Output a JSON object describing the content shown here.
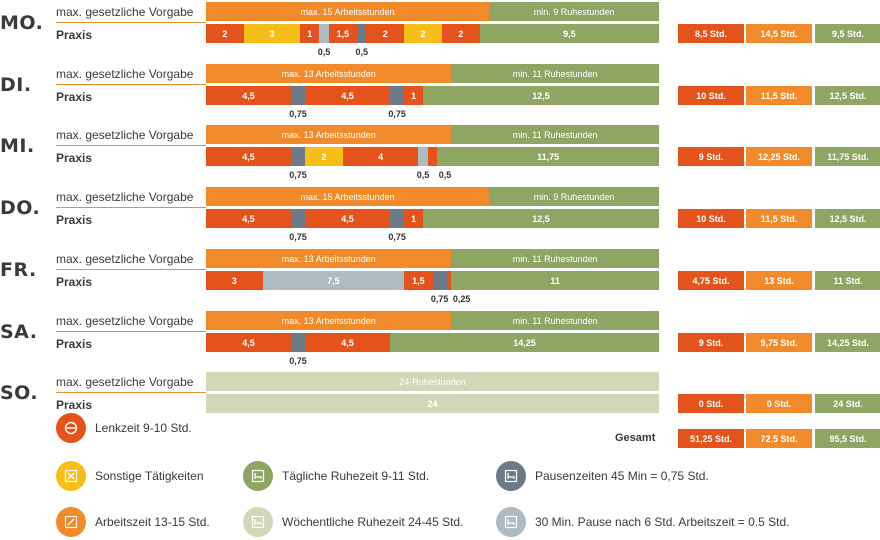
{
  "colors": {
    "lenkzeit": "#e4531b",
    "arbeitszeit": "#f08a2b",
    "sonstige": "#f7bd19",
    "ruhe_taeglich": "#8ea564",
    "ruhe_woechentlich": "#d3d7b8",
    "pause45": "#6b7a86",
    "pause30": "#aebbc2"
  },
  "chart_data": {
    "type": "bar",
    "orientation": "horizontal-stacked",
    "total_hours": 24,
    "row_labels": {
      "vorgabe": "max. gesetzliche Vorgabe",
      "praxis": "Praxis"
    },
    "days": [
      {
        "day": "MO.",
        "vorgabe": [
          {
            "label": "max. 15 Arbeitsstunden",
            "value": 15,
            "kind": "arbeitszeit"
          },
          {
            "label": "min. 9 Ruhestunden",
            "value": 9,
            "kind": "ruhe_taeglich"
          }
        ],
        "praxis": [
          {
            "label": "2",
            "value": 2,
            "kind": "lenkzeit"
          },
          {
            "label": "3",
            "value": 3,
            "kind": "sonstige"
          },
          {
            "label": "1",
            "value": 1,
            "kind": "lenkzeit"
          },
          {
            "label": "",
            "value": 0.5,
            "kind": "pause30"
          },
          {
            "label": "1,5",
            "value": 1.5,
            "kind": "lenkzeit"
          },
          {
            "label": "",
            "value": 0.5,
            "kind": "pause45"
          },
          {
            "label": "2",
            "value": 2,
            "kind": "lenkzeit"
          },
          {
            "label": "2",
            "value": 2,
            "kind": "sonstige"
          },
          {
            "label": "2",
            "value": 2,
            "kind": "lenkzeit"
          },
          {
            "label": "9,5",
            "value": 9.5,
            "kind": "ruhe_taeglich"
          }
        ],
        "below": [
          "0,5",
          "0,5"
        ],
        "summary": [
          "8,5 Std.",
          "14,5 Std.",
          "9,5 Std."
        ]
      },
      {
        "day": "DI.",
        "vorgabe": [
          {
            "label": "max. 13 Arbeitsstunden",
            "value": 13,
            "kind": "arbeitszeit"
          },
          {
            "label": "min. 11 Ruhestunden",
            "value": 11,
            "kind": "ruhe_taeglich"
          }
        ],
        "praxis": [
          {
            "label": "4,5",
            "value": 4.5,
            "kind": "lenkzeit"
          },
          {
            "label": "",
            "value": 0.75,
            "kind": "pause45"
          },
          {
            "label": "4,5",
            "value": 4.5,
            "kind": "lenkzeit"
          },
          {
            "label": "",
            "value": 0.75,
            "kind": "pause45"
          },
          {
            "label": "1",
            "value": 1,
            "kind": "lenkzeit"
          },
          {
            "label": "12,5",
            "value": 12.5,
            "kind": "ruhe_taeglich"
          }
        ],
        "below": [
          "0,75",
          "0,75"
        ],
        "summary": [
          "10 Std.",
          "11,5 Std.",
          "12,5 Std."
        ]
      },
      {
        "day": "MI.",
        "vorgabe": [
          {
            "label": "max. 13 Arbeitsstunden",
            "value": 13,
            "kind": "arbeitszeit"
          },
          {
            "label": "min. 11 Ruhestunden",
            "value": 11,
            "kind": "ruhe_taeglich"
          }
        ],
        "praxis": [
          {
            "label": "4,5",
            "value": 4.5,
            "kind": "lenkzeit"
          },
          {
            "label": "",
            "value": 0.75,
            "kind": "pause45"
          },
          {
            "label": "2",
            "value": 2,
            "kind": "sonstige"
          },
          {
            "label": "4",
            "value": 4,
            "kind": "lenkzeit"
          },
          {
            "label": "",
            "value": 0.5,
            "kind": "pause30"
          },
          {
            "label": "",
            "value": 0.5,
            "kind": "lenkzeit"
          },
          {
            "label": "11,75",
            "value": 11.75,
            "kind": "ruhe_taeglich"
          }
        ],
        "below": [
          "0,75",
          "0,5",
          "0,5"
        ],
        "summary": [
          "9 Std.",
          "12,25 Std.",
          "11,75 Std."
        ]
      },
      {
        "day": "DO.",
        "vorgabe": [
          {
            "label": "max. 15 Arbeitsstunden",
            "value": 15,
            "kind": "arbeitszeit"
          },
          {
            "label": "min. 9 Ruhestunden",
            "value": 9,
            "kind": "ruhe_taeglich"
          }
        ],
        "praxis": [
          {
            "label": "4,5",
            "value": 4.5,
            "kind": "lenkzeit"
          },
          {
            "label": "",
            "value": 0.75,
            "kind": "pause45"
          },
          {
            "label": "4,5",
            "value": 4.5,
            "kind": "lenkzeit"
          },
          {
            "label": "",
            "value": 0.75,
            "kind": "pause45"
          },
          {
            "label": "1",
            "value": 1,
            "kind": "lenkzeit"
          },
          {
            "label": "12,5",
            "value": 12.5,
            "kind": "ruhe_taeglich"
          }
        ],
        "below": [
          "0,75",
          "0,75"
        ],
        "summary": [
          "10 Std.",
          "11,5 Std.",
          "12,5 Std."
        ]
      },
      {
        "day": "FR.",
        "vorgabe": [
          {
            "label": "max. 13 Arbeitsstunden",
            "value": 13,
            "kind": "arbeitszeit"
          },
          {
            "label": "min. 11 Ruhestunden",
            "value": 11,
            "kind": "ruhe_taeglich"
          }
        ],
        "praxis": [
          {
            "label": "3",
            "value": 3,
            "kind": "lenkzeit"
          },
          {
            "label": "7,5",
            "value": 7.5,
            "kind": "pause30"
          },
          {
            "label": "1,5",
            "value": 1.5,
            "kind": "lenkzeit"
          },
          {
            "label": "",
            "value": 0.75,
            "kind": "pause45"
          },
          {
            "label": "",
            "value": 0.25,
            "kind": "lenkzeit"
          },
          {
            "label": "11",
            "value": 11,
            "kind": "ruhe_taeglich"
          }
        ],
        "below": [
          "0,75",
          "0,25"
        ],
        "summary": [
          "4,75 Std.",
          "13 Std.",
          "11 Std."
        ]
      },
      {
        "day": "SA.",
        "vorgabe": [
          {
            "label": "max. 13 Arbeitsstunden",
            "value": 13,
            "kind": "arbeitszeit"
          },
          {
            "label": "min. 11 Ruhestunden",
            "value": 11,
            "kind": "ruhe_taeglich"
          }
        ],
        "praxis": [
          {
            "label": "4,5",
            "value": 4.5,
            "kind": "lenkzeit"
          },
          {
            "label": "",
            "value": 0.75,
            "kind": "pause45"
          },
          {
            "label": "4,5",
            "value": 4.5,
            "kind": "lenkzeit"
          },
          {
            "label": "14,25",
            "value": 14.25,
            "kind": "ruhe_taeglich"
          }
        ],
        "below": [
          "0,75"
        ],
        "summary": [
          "9 Std.",
          "9,75 Std.",
          "14,25 Std."
        ]
      },
      {
        "day": "SO.",
        "vorgabe": [
          {
            "label": "24-Ruhestunden",
            "value": 24,
            "kind": "ruhe_woechentlich"
          }
        ],
        "praxis": [
          {
            "label": "24",
            "value": 24,
            "kind": "ruhe_woechentlich"
          }
        ],
        "below": [],
        "summary": [
          "0 Std.",
          "0 Std.",
          "24 Std."
        ]
      }
    ],
    "gesamt": {
      "label": "Gesamt",
      "values": [
        "51,25 Std.",
        "72,5 Std.",
        "95,5 Std."
      ]
    },
    "legend": [
      {
        "label": "Lenkzeit 9-10 Std.",
        "kind": "lenkzeit",
        "icon": "steering-wheel-icon"
      },
      {
        "label": "Sonstige Tätigkeiten",
        "kind": "sonstige",
        "icon": "tools-icon"
      },
      {
        "label": "Tägliche Ruhezeit 9-11 Std.",
        "kind": "ruhe_taeglich",
        "icon": "bed-icon"
      },
      {
        "label": "Pausenzeiten 45 Min = 0,75 Std.",
        "kind": "pause45",
        "icon": "bed-icon"
      },
      {
        "label": "Arbeitszeit 13-15 Std.",
        "kind": "arbeitszeit",
        "icon": "pencil-icon"
      },
      {
        "label": "Wöchentliche Ruhezeit 24-45 Std.",
        "kind": "ruhe_woechentlich",
        "icon": "bed-icon"
      },
      {
        "label": "30 Min. Pause nach 6 Std. Arbeitszeit = 0.5 Std.",
        "kind": "pause30",
        "icon": "bed-icon"
      }
    ]
  }
}
